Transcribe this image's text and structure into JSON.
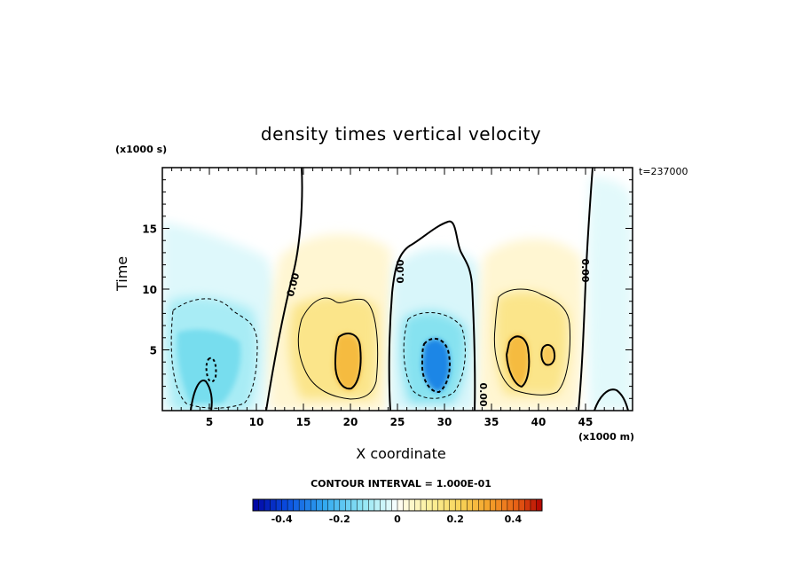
{
  "chart_data": {
    "type": "heatmap",
    "title": "density times vertical velocity",
    "xlabel": "X coordinate",
    "ylabel": "Time",
    "x_unit": "(x1000 m)",
    "y_unit": "(x1000 s)",
    "time_label": "t=237000",
    "xlim": [
      0,
      50
    ],
    "ylim": [
      0,
      20
    ],
    "x_ticks": [
      "5",
      "10",
      "15",
      "20",
      "25",
      "30",
      "35",
      "40",
      "45"
    ],
    "y_ticks": [
      "5",
      "10",
      "15"
    ],
    "contour_labels": [
      "0.00",
      "0.00",
      "0.00",
      "0.00"
    ],
    "contour_interval_text": "CONTOUR INTERVAL = 1.000E-01",
    "colorbar": {
      "range": [
        -0.5,
        0.5
      ],
      "ticks": [
        "-0.4",
        "-0.2",
        "0",
        "0.2",
        "0.4"
      ]
    },
    "cells": [
      {
        "x": 5.5,
        "t": 4.5,
        "value": -0.23
      },
      {
        "x": 19,
        "t": 4.5,
        "value": 0.25
      },
      {
        "x": 29,
        "t": 3.5,
        "value": -0.35
      },
      {
        "x": 37,
        "t": 4.5,
        "value": 0.22
      },
      {
        "x": 40.5,
        "t": 4.5,
        "value": 0.2
      }
    ]
  },
  "colors": {
    "negative_strong": "#1e7ee8",
    "negative_weak": "#dff9fb",
    "positive_weak": "#fff4c8",
    "positive_strong": "#f39a20"
  }
}
